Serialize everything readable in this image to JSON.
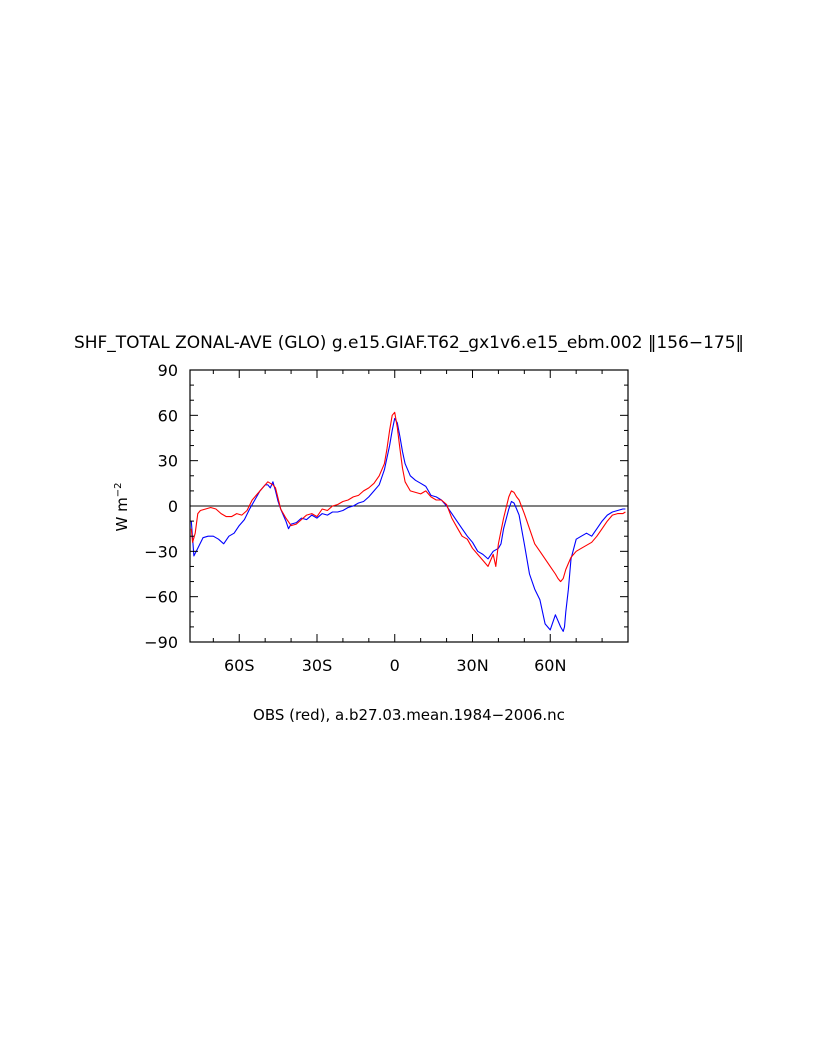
{
  "chart_data": {
    "type": "line",
    "title": "SHF_TOTAL ZONAL-AVE (GLO) g.e15.GIAF.T62_gx1v6.e15_ebm.002 ‖156−175‖",
    "xlabel": "OBS (red), a.b27.03.mean.1984−2006.nc",
    "ylabel": "W m",
    "ylabel_sup": "−2",
    "xlim": [
      -79,
      90
    ],
    "ylim": [
      -90,
      90
    ],
    "x_ticks": [
      {
        "value": -60,
        "label": "60S"
      },
      {
        "value": -30,
        "label": "30S"
      },
      {
        "value": 0,
        "label": "0"
      },
      {
        "value": 30,
        "label": "30N"
      },
      {
        "value": 60,
        "label": "60N"
      }
    ],
    "y_ticks": [
      {
        "value": 90,
        "label": "90"
      },
      {
        "value": 60,
        "label": "60"
      },
      {
        "value": 30,
        "label": "30"
      },
      {
        "value": 0,
        "label": "0"
      },
      {
        "value": -30,
        "label": "−30"
      },
      {
        "value": -60,
        "label": "−60"
      },
      {
        "value": -90,
        "label": "−90"
      }
    ],
    "zero_line": true,
    "series": [
      {
        "color": "#0000ff",
        "x": [
          -78.5,
          -77.5,
          -76,
          -74,
          -72,
          -70,
          -68,
          -66,
          -64,
          -62,
          -60,
          -58,
          -56,
          -54,
          -52,
          -50,
          -49,
          -48,
          -47,
          -46,
          -45,
          -44,
          -43,
          -42,
          -41,
          -40,
          -38,
          -36,
          -34,
          -32,
          -30,
          -28,
          -26,
          -24,
          -22,
          -20,
          -18,
          -16,
          -14,
          -12,
          -10,
          -8,
          -6,
          -4,
          -3,
          -2,
          -1,
          0,
          1,
          2,
          3,
          4,
          6,
          8,
          10,
          12,
          14,
          16,
          18,
          20,
          22,
          24,
          26,
          28,
          30,
          32,
          34,
          36,
          38,
          40,
          41,
          42,
          44,
          45,
          46,
          47,
          48,
          50,
          52,
          54,
          56,
          58,
          60,
          62,
          63,
          64,
          65,
          65.5,
          66,
          67,
          68,
          70,
          72,
          74,
          76,
          78,
          80,
          82,
          84,
          86,
          88,
          89
        ],
        "y": [
          -10,
          -33,
          -28,
          -21,
          -20,
          -20,
          -22,
          -25,
          -20,
          -18,
          -13,
          -9,
          -2,
          4,
          10,
          14,
          14,
          12,
          16,
          10,
          3,
          -2,
          -6,
          -10,
          -15,
          -12,
          -11,
          -8,
          -9,
          -6,
          -8,
          -5,
          -6,
          -4,
          -4,
          -3,
          -1,
          0,
          2,
          3,
          6,
          10,
          14,
          24,
          32,
          40,
          50,
          58,
          55,
          46,
          36,
          28,
          20,
          17,
          15,
          13,
          7,
          6,
          4,
          0,
          -5,
          -10,
          -15,
          -20,
          -24,
          -30,
          -32,
          -35,
          -30,
          -28,
          -25,
          -15,
          -2,
          3,
          2,
          -2,
          -6,
          -25,
          -45,
          -55,
          -62,
          -78,
          -82,
          -72,
          -76,
          -80,
          -83,
          -80,
          -70,
          -55,
          -35,
          -22,
          -20,
          -18,
          -20,
          -15,
          -10,
          -6,
          -4,
          -3,
          -2,
          -2
        ]
      },
      {
        "color": "#ff0000",
        "x": [
          -78.5,
          -78,
          -77,
          -76,
          -75,
          -73,
          -71,
          -69,
          -67,
          -65,
          -63,
          -61,
          -59,
          -57,
          -55,
          -53,
          -51,
          -49,
          -47,
          -46,
          -45,
          -44,
          -42,
          -40,
          -38,
          -36,
          -34,
          -32,
          -30,
          -28,
          -26,
          -24,
          -22,
          -20,
          -18,
          -16,
          -14,
          -12,
          -10,
          -8,
          -6,
          -4,
          -3,
          -2,
          -1,
          0,
          1,
          2,
          3,
          4,
          5,
          6,
          8,
          10,
          12,
          14,
          16,
          18,
          20,
          22,
          24,
          26,
          28,
          30,
          32,
          34,
          36,
          37,
          38,
          39,
          40,
          42,
          44,
          45,
          46,
          47,
          48,
          50,
          52,
          54,
          56,
          58,
          60,
          62,
          63,
          64,
          65,
          66,
          67,
          68,
          70,
          72,
          74,
          76,
          78,
          80,
          82,
          84,
          86,
          88,
          89
        ],
        "y": [
          -15,
          -24,
          -18,
          -5,
          -3,
          -2,
          -1,
          -2,
          -5,
          -7,
          -7,
          -5,
          -6,
          -3,
          4,
          8,
          12,
          16,
          14,
          12,
          5,
          -2,
          -8,
          -13,
          -12,
          -9,
          -6,
          -5,
          -7,
          -2,
          -3,
          0,
          1,
          3,
          4,
          6,
          7,
          10,
          12,
          15,
          20,
          28,
          38,
          50,
          60,
          62,
          52,
          38,
          25,
          16,
          13,
          10,
          9,
          8,
          10,
          6,
          4,
          4,
          1,
          -8,
          -14,
          -20,
          -22,
          -28,
          -32,
          -36,
          -40,
          -36,
          -32,
          -40,
          -25,
          -8,
          6,
          10,
          9,
          6,
          4,
          -5,
          -15,
          -25,
          -30,
          -35,
          -40,
          -45,
          -48,
          -50,
          -48,
          -42,
          -38,
          -34,
          -30,
          -28,
          -26,
          -24,
          -20,
          -15,
          -10,
          -6,
          -5,
          -5,
          -4
        ]
      }
    ]
  }
}
